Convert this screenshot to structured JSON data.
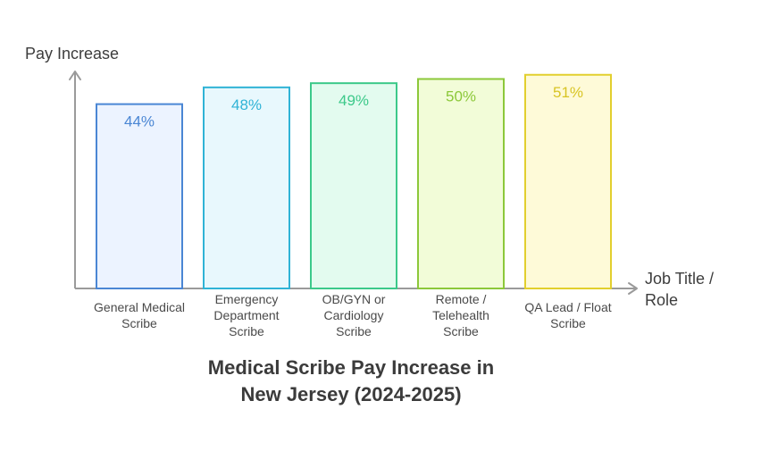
{
  "chart_data": {
    "type": "bar",
    "title_lines": [
      "Medical Scribe Pay Increase in",
      "New Jersey (2024-2025)"
    ],
    "ylabel": "Pay Increase",
    "xlabel_lines": [
      "Job Title /",
      "Role"
    ],
    "categories": [
      [
        "General Medical",
        "Scribe"
      ],
      [
        "Emergency",
        "Department",
        "Scribe"
      ],
      [
        "OB/GYN or",
        "Cardiology",
        "Scribe"
      ],
      [
        "Remote /",
        "Telehealth",
        "Scribe"
      ],
      [
        "QA Lead / Float",
        "Scribe"
      ]
    ],
    "values": [
      44,
      48,
      49,
      50,
      51
    ],
    "value_labels": [
      "44%",
      "48%",
      "49%",
      "50%",
      "51%"
    ],
    "ylim": [
      0,
      55
    ],
    "grid": false,
    "legend": "none",
    "colors": [
      {
        "fill": "#ecf3ff",
        "stroke": "#4a86d4",
        "text": "#4a86d4"
      },
      {
        "fill": "#e8f8fd",
        "stroke": "#2fb3d6",
        "text": "#2fb3d6"
      },
      {
        "fill": "#e3fbef",
        "stroke": "#3cc98a",
        "text": "#3cc98a"
      },
      {
        "fill": "#f2fcd8",
        "stroke": "#8cc83a",
        "text": "#8cc83a"
      },
      {
        "fill": "#fefad8",
        "stroke": "#e2cf2e",
        "text": "#d8c424"
      }
    ],
    "axis_color": "#9a9a9a"
  }
}
